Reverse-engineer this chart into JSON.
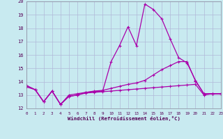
{
  "xlabel": "Windchill (Refroidissement éolien,°C)",
  "ylabel": "",
  "background_color": "#c8eaf0",
  "grid_color": "#b0b8d8",
  "line_color": "#aa00aa",
  "xlim": [
    0,
    23
  ],
  "ylim": [
    12,
    20
  ],
  "yticks": [
    12,
    13,
    14,
    15,
    16,
    17,
    18,
    19,
    20
  ],
  "xticks": [
    0,
    1,
    2,
    3,
    4,
    5,
    6,
    7,
    8,
    9,
    10,
    11,
    12,
    13,
    14,
    15,
    16,
    17,
    18,
    19,
    20,
    21,
    22,
    23
  ],
  "series": [
    {
      "x": [
        0,
        1,
        2,
        3,
        4,
        5,
        6,
        7,
        8,
        9,
        10,
        11,
        12,
        13,
        14,
        15,
        16,
        17,
        18,
        19,
        20,
        21,
        22,
        23
      ],
      "y": [
        13.6,
        13.4,
        12.5,
        13.3,
        12.3,
        12.9,
        13.0,
        13.15,
        13.2,
        13.25,
        13.3,
        13.35,
        13.4,
        13.45,
        13.5,
        13.55,
        13.6,
        13.65,
        13.7,
        13.75,
        13.8,
        13.0,
        13.1,
        13.1
      ]
    },
    {
      "x": [
        0,
        1,
        2,
        3,
        4,
        5,
        6,
        7,
        8,
        9,
        10,
        11,
        12,
        13,
        14,
        15,
        16,
        17,
        18,
        19,
        20,
        21,
        22,
        23
      ],
      "y": [
        13.7,
        13.4,
        12.5,
        13.3,
        12.3,
        13.0,
        13.1,
        13.2,
        13.3,
        13.35,
        13.5,
        13.65,
        13.8,
        13.9,
        14.1,
        14.5,
        14.9,
        15.2,
        15.5,
        15.5,
        14.05,
        13.1,
        13.1,
        13.1
      ]
    },
    {
      "x": [
        0,
        1,
        2,
        3,
        4,
        5,
        6,
        7,
        8,
        9,
        10,
        11,
        12,
        13,
        14,
        15,
        16,
        17,
        18,
        19,
        20,
        21,
        22,
        23
      ],
      "y": [
        13.7,
        13.4,
        12.5,
        13.3,
        12.3,
        12.9,
        13.0,
        13.2,
        13.25,
        13.3,
        15.5,
        16.7,
        18.1,
        16.7,
        19.8,
        19.4,
        18.7,
        17.2,
        15.8,
        15.4,
        14.1,
        13.1,
        13.1,
        13.1
      ]
    }
  ]
}
